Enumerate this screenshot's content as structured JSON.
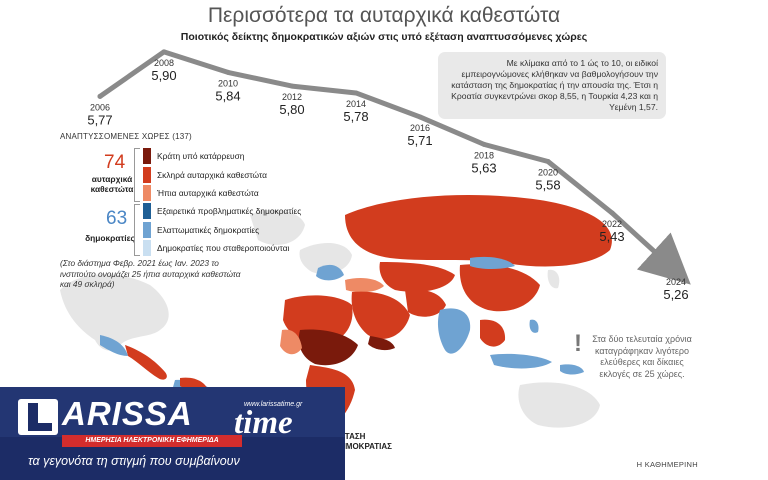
{
  "header": {
    "title": "Περισσότερα τα αυταρχικά καθεστώτα",
    "subtitle": "Ποιοτικός δείκτης δημοκρατικών αξιών στις υπό εξέταση αναπτυσσόμενες χώρες"
  },
  "note": {
    "text": "Με κλίμακα από το 1 ώς το 10, οι ειδικοί εμπειρογνώμονες κλήθηκαν να βαθμολογήσουν την κατάσταση της δημοκρατίας ή την απουσία της. Έτσι η Κροατία συγκεντρώνει σκορ 8,55, η Τουρκία 4,23 και η Υεμένη 1,57."
  },
  "chart_data": {
    "type": "line",
    "x": [
      "2006",
      "2008",
      "2010",
      "2012",
      "2014",
      "2016",
      "2018",
      "2020",
      "2022",
      "2024"
    ],
    "values": [
      5.77,
      5.9,
      5.84,
      5.8,
      5.78,
      5.71,
      5.63,
      5.58,
      5.43,
      5.26
    ],
    "value_labels": [
      "5,77",
      "5,90",
      "5,84",
      "5,80",
      "5,78",
      "5,71",
      "5,63",
      "5,58",
      "5,43",
      "5,26"
    ],
    "title": "Περισσότερα τα αυταρχικά καθεστώτα",
    "subtitle": "Ποιοτικός δείκτης δημοκρατικών αξιών στις υπό εξέταση αναπτυσσόμενες χώρες",
    "xlabel": "",
    "ylabel": "",
    "grid": false,
    "line_color": "#8a8a8a"
  },
  "legend": {
    "heading": "ΑΝΑΠΤΥΣΣΟΜΕΝΕΣ ΧΩΡΕΣ (137)",
    "autocracies_count": "74",
    "autocracies_label": "αυταρχικά καθεστώτα",
    "democracies_count": "63",
    "democracies_label": "δημοκρατίες",
    "items": [
      {
        "label": "Κράτη υπό κατάρρευση",
        "color": "#7a1a0c"
      },
      {
        "label": "Σκληρά αυταρχικά καθεστώτα",
        "color": "#d23c1e"
      },
      {
        "label": "Ήπια αυταρχικά καθεστώτα",
        "color": "#ee8a65"
      },
      {
        "label": "Εξαιρετικά προβληματικές δημοκρατίες",
        "color": "#1f5f95"
      },
      {
        "label": "Ελαττωματικές δημοκρατίες",
        "color": "#6fa3d2"
      },
      {
        "label": "Δημοκρατίες που σταθεροποιούνται",
        "color": "#c9dff1"
      }
    ],
    "period_note": "(Στο διάστημα Φεβρ. 2021 έως Ιαν. 2023 το ινστιτούτο ονομάζει 25 ήπια αυταρχικά καθεστώτα και 49 σκληρά)"
  },
  "callout": {
    "mark": "!",
    "text": "Στα δύο τελευταία χρόνια καταγράφηκαν λιγότερο ελεύθερες και δίκαιες εκλογές σε 25 χώρες."
  },
  "map_fragment": {
    "line1": "ΣΤΑΣΗ",
    "line2": "ΗΜΟΚΡΑΤΙΑΣ"
  },
  "source": "Η ΚΑΘΗΜΕΡΙΝΗ",
  "banner": {
    "logo_main": "ARISSA",
    "logo_time": "time",
    "url": "www.larissatime.gr",
    "strap": "ΗΜΕΡΗΣΙΑ ΗΛΕΚΤΡΟΝΙΚΗ ΕΦΗΜΕΡΙΔΑ",
    "tagline": "τα γεγονότα τη στιγμή που συμβαίνουν"
  }
}
